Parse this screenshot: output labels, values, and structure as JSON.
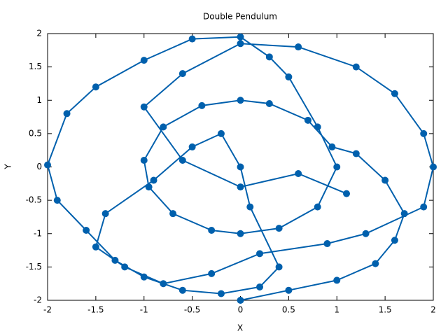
{
  "chart_data": {
    "type": "linespoints",
    "title": "Double Pendulum",
    "xlabel": "X",
    "ylabel": "Y",
    "color": "#0060ad",
    "grid": false,
    "xlim": [
      -2,
      2
    ],
    "ylim": [
      -2,
      2
    ],
    "xticks": [
      -2,
      -1.5,
      -1,
      -0.5,
      0,
      0.5,
      1,
      1.5,
      2
    ],
    "yticks": [
      -2,
      -1.5,
      -1,
      -0.5,
      0,
      0.5,
      1,
      1.5,
      2
    ],
    "x": [
      0,
      0.5,
      1,
      1.4,
      1.6,
      1.7,
      1.5,
      1.2,
      0.95,
      0.7,
      0.3,
      0,
      -0.4,
      -0.8,
      -1,
      -0.95,
      -0.7,
      -0.3,
      0,
      0.4,
      0.8,
      1,
      0.8,
      0.5,
      0.3,
      0,
      -0.5,
      -1,
      -1.5,
      -1.8,
      -2,
      -1.9,
      -1.6,
      -1.3,
      -1,
      -0.6,
      -0.2,
      0.2,
      0.4,
      0.1,
      0,
      -0.2,
      -0.5,
      -0.9,
      -1.4,
      -1.5,
      -1.2,
      -0.8,
      -0.3,
      0.2,
      0.9,
      1.3,
      1.9,
      2,
      1.9,
      1.6,
      1.2,
      0.6,
      0,
      -0.6,
      -1,
      -0.6,
      0,
      0.6,
      1.1
    ],
    "values": [
      -2,
      -1.85,
      -1.7,
      -1.45,
      -1.1,
      -0.7,
      -0.2,
      0.2,
      0.3,
      0.7,
      0.95,
      1,
      0.92,
      0.6,
      0.1,
      -0.3,
      -0.7,
      -0.95,
      -1,
      -0.92,
      -0.6,
      0,
      0.6,
      1.35,
      1.65,
      1.95,
      1.92,
      1.6,
      1.2,
      0.8,
      0.03,
      -0.5,
      -0.95,
      -1.4,
      -1.65,
      -1.85,
      -1.9,
      -1.8,
      -1.5,
      -0.6,
      0,
      0.5,
      0.3,
      -0.2,
      -0.7,
      -1.2,
      -1.5,
      -1.75,
      -1.6,
      -1.3,
      -1.15,
      -1,
      -0.6,
      0,
      0.5,
      1.1,
      1.5,
      1.8,
      1.85,
      1.4,
      0.9,
      0.1,
      -0.3,
      -0.1,
      -0.4
    ]
  }
}
